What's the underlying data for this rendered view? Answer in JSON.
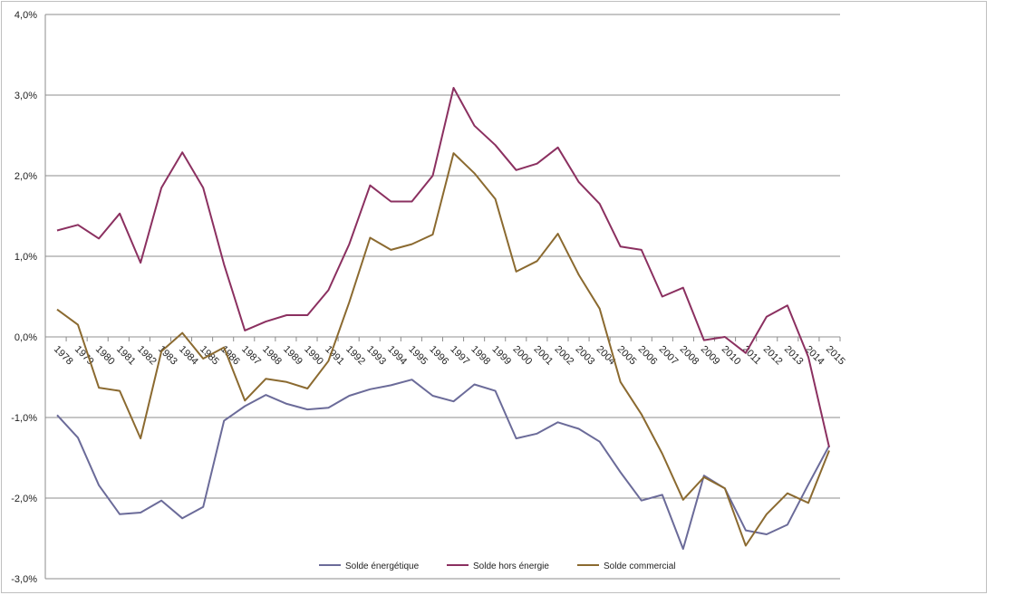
{
  "chart_data": {
    "type": "line",
    "title": "",
    "xlabel": "",
    "ylabel": "",
    "ylim": [
      -0.03,
      0.04
    ],
    "y_ticks": [
      0.04,
      0.03,
      0.02,
      0.01,
      0.0,
      -0.01,
      -0.02,
      -0.03
    ],
    "y_tick_labels": [
      "4,0%",
      "3,0%",
      "2,0%",
      "1,0%",
      "0,0%",
      "-1,0%",
      "-2,0%",
      "-3,0%"
    ],
    "grid": true,
    "legend": "bottom",
    "categories": [
      "1978",
      "1979",
      "1980",
      "1981",
      "1982",
      "1983",
      "1984",
      "1985",
      "1986",
      "1987",
      "1988",
      "1989",
      "1990",
      "1991",
      "1992",
      "1993",
      "1994",
      "1995",
      "1996",
      "1997",
      "1998",
      "1999",
      "2000",
      "2001",
      "2002",
      "2003",
      "2004",
      "2005",
      "2006",
      "2007",
      "2008",
      "2009",
      "2010",
      "2011",
      "2012",
      "2013",
      "2014",
      "2015"
    ],
    "series": [
      {
        "name": "Solde énergétique",
        "color": "#6b6b99",
        "values": [
          -0.0097,
          -0.0125,
          -0.0184,
          -0.022,
          -0.0218,
          -0.0203,
          -0.0225,
          -0.0211,
          -0.0104,
          -0.0086,
          -0.0072,
          -0.0083,
          -0.009,
          -0.0088,
          -0.0073,
          -0.0065,
          -0.006,
          -0.0053,
          -0.0073,
          -0.008,
          -0.0059,
          -0.0067,
          -0.0126,
          -0.012,
          -0.0106,
          -0.0114,
          -0.013,
          -0.0168,
          -0.0203,
          -0.0196,
          -0.0263,
          -0.0172,
          -0.0188,
          -0.024,
          -0.0245,
          -0.0233,
          -0.0183,
          -0.0135
        ]
      },
      {
        "name": "Solde hors énergie",
        "color": "#8b3060",
        "values": [
          0.0132,
          0.0139,
          0.0122,
          0.0153,
          0.0092,
          0.0185,
          0.0229,
          0.0185,
          0.009,
          0.0008,
          0.0019,
          0.0027,
          0.0027,
          0.0058,
          0.0115,
          0.0188,
          0.0168,
          0.0168,
          0.02,
          0.0309,
          0.0262,
          0.0238,
          0.0207,
          0.0215,
          0.0235,
          0.0192,
          0.0165,
          0.0112,
          0.0108,
          0.005,
          0.0061,
          -0.0004,
          0.0,
          -0.002,
          0.0025,
          0.0039,
          -0.0025,
          -0.0137
        ]
      },
      {
        "name": "Solde commercial",
        "color": "#8b6a30",
        "values": [
          0.0034,
          0.0015,
          -0.0063,
          -0.0067,
          -0.0126,
          -0.0018,
          0.0005,
          -0.0027,
          -0.0013,
          -0.0079,
          -0.0052,
          -0.0056,
          -0.0064,
          -0.003,
          0.0043,
          0.0123,
          0.0108,
          0.0115,
          0.0127,
          0.0228,
          0.0203,
          0.0171,
          0.0081,
          0.0094,
          0.0128,
          0.0077,
          0.0035,
          -0.0056,
          -0.0096,
          -0.0145,
          -0.0202,
          -0.0174,
          -0.0188,
          -0.0259,
          -0.022,
          -0.0194,
          -0.0206,
          -0.0141
        ]
      }
    ]
  }
}
